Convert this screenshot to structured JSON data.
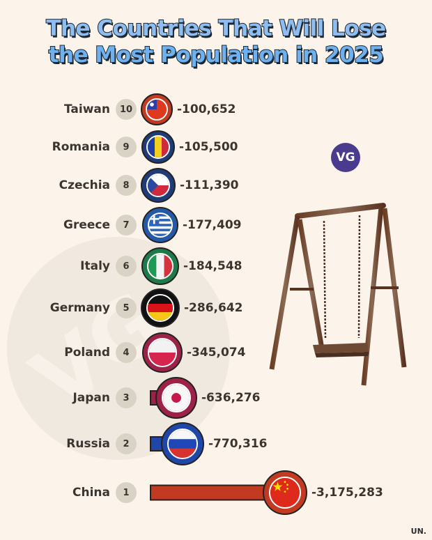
{
  "title": {
    "line1": "The Countries That Will Lose",
    "line2": "the Most Population in 2025"
  },
  "logo": {
    "text": "VG",
    "color": "#4b3b8f"
  },
  "watermark": {
    "text": "VG"
  },
  "source": "UN.",
  "rows": [
    {
      "country": "Taiwan",
      "rank": "10",
      "value": "-100,652",
      "ring": "#c23a22",
      "flag": "taiwan"
    },
    {
      "country": "Romania",
      "rank": "9",
      "value": "-105,500",
      "ring": "#1f3b78",
      "flag": "romania"
    },
    {
      "country": "Czechia",
      "rank": "8",
      "value": "-111,390",
      "ring": "#1f3b78",
      "flag": "czechia"
    },
    {
      "country": "Greece",
      "rank": "7",
      "value": "-177,409",
      "ring": "#2559a6",
      "flag": "greece"
    },
    {
      "country": "Italy",
      "rank": "6",
      "value": "-184,548",
      "ring": "#1f7a4a",
      "flag": "italy"
    },
    {
      "country": "Germany",
      "rank": "5",
      "value": "-286,642",
      "ring": "#111111",
      "flag": "germany"
    },
    {
      "country": "Poland",
      "rank": "4",
      "value": "-345,074",
      "ring": "#9c2347",
      "flag": "poland"
    },
    {
      "country": "Japan",
      "rank": "3",
      "value": "-636,276",
      "ring": "#9c2347",
      "flag": "japan"
    },
    {
      "country": "Russia",
      "rank": "2",
      "value": "-770,316",
      "ring": "#1f47a8",
      "flag": "russia"
    },
    {
      "country": "China",
      "rank": "1",
      "value": "-3,175,283",
      "ring": "#c23a22",
      "flag": "china"
    }
  ],
  "chart_data": {
    "type": "bar",
    "title": "The Countries That Will Lose the Most Population in 2025",
    "orientation": "horizontal",
    "categories": [
      "Taiwan",
      "Romania",
      "Czechia",
      "Greece",
      "Italy",
      "Germany",
      "Poland",
      "Japan",
      "Russia",
      "China"
    ],
    "ranks": [
      10,
      9,
      8,
      7,
      6,
      5,
      4,
      3,
      2,
      1
    ],
    "values": [
      -100652,
      -105500,
      -111390,
      -177409,
      -184548,
      -286642,
      -345074,
      -636276,
      -770316,
      -3175283
    ],
    "xlabel": "",
    "ylabel": "",
    "source": "UN.",
    "grid": false,
    "legend": null
  }
}
